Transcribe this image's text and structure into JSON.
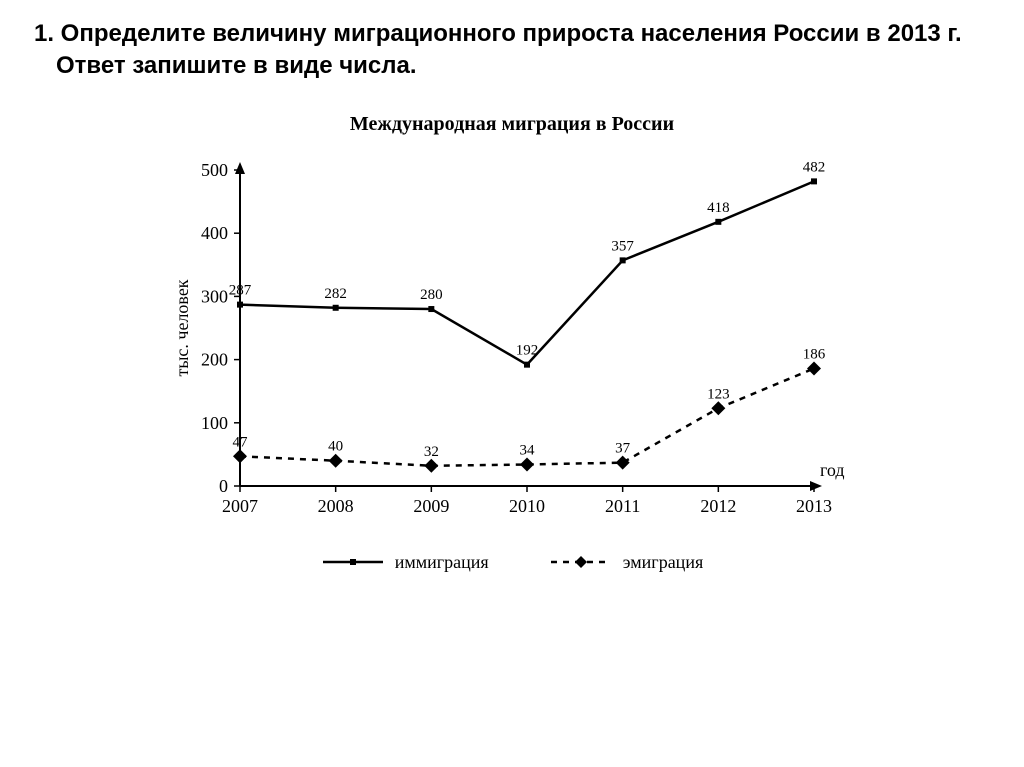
{
  "question_text": "1. Определите величину миграционного прироста населения России в 2013 г.  Ответ запишите в виде числа.",
  "chart": {
    "type": "line",
    "title": "Международная миграция в России",
    "xlabel": "год",
    "ylabel": "тыс. человек",
    "categories": [
      "2007",
      "2008",
      "2009",
      "2010",
      "2011",
      "2012",
      "2013"
    ],
    "ylim": [
      0,
      500
    ],
    "yticks": [
      0,
      100,
      200,
      300,
      400,
      500
    ],
    "series": {
      "immigration": {
        "label": "иммиграция",
        "values": [
          287,
          282,
          280,
          192,
          357,
          418,
          482
        ],
        "color": "#000000",
        "marker": "square",
        "marker_size": 6,
        "line_width": 2.5,
        "dash": "solid"
      },
      "emigration": {
        "label": "эмиграция",
        "values": [
          47,
          40,
          32,
          34,
          37,
          123,
          186
        ],
        "color": "#000000",
        "marker": "diamond",
        "marker_size": 7,
        "line_width": 2.5,
        "dash": "6,6"
      }
    },
    "axis_color": "#000000",
    "tick_fontsize": 18,
    "label_fontsize": 18,
    "datalabel_fontsize": 15,
    "title_fontsize": 20,
    "background_color": "#ffffff",
    "font_family": "Times New Roman"
  }
}
